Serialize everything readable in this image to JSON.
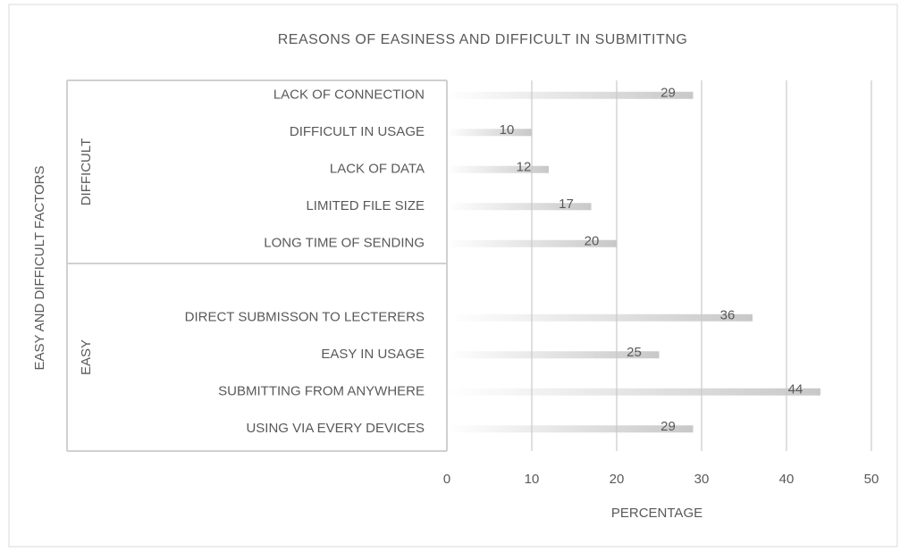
{
  "chart_data": {
    "type": "bar",
    "orientation": "horizontal",
    "title": "REASONS OF EASINESS AND DIFFICULT IN SUBMITITNG",
    "xlabel": "PERCENTAGE",
    "ylabel": "EASY AND DIFFICULT FACTORS",
    "groups": [
      {
        "name": "DIFFICULT",
        "categories": [
          "LACK OF CONNECTION",
          "DIFFICULT IN USAGE",
          "LACK OF DATA",
          "LIMITED FILE SIZE",
          "LONG TIME OF SENDING"
        ],
        "values": [
          29,
          10,
          12,
          17,
          20
        ]
      },
      {
        "name": "EASY",
        "categories": [
          "DIRECT SUBMISSON TO LECTERERS",
          "EASY IN USAGE",
          "SUBMITTING FROM ANYWHERE",
          "USING VIA EVERY DEVICES"
        ],
        "values": [
          36,
          25,
          44,
          29
        ]
      }
    ],
    "xlim": [
      0,
      50
    ],
    "xticks": [
      0,
      10,
      20,
      30,
      40,
      50
    ],
    "grid": true,
    "color": "#c8c8c8"
  }
}
